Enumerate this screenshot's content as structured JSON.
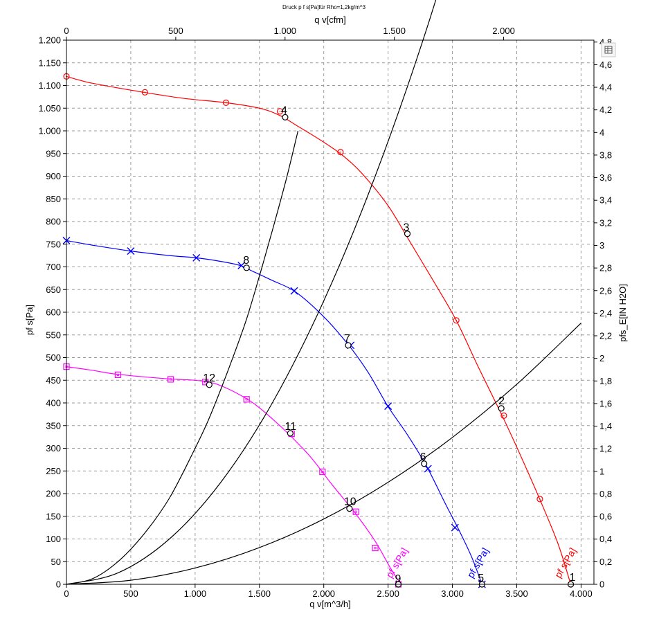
{
  "chart_data": {
    "type": "line",
    "title": "Druck p f s[Pa]für Rho=1,2kg/m^3",
    "xlabel": "q v[m^3/h]",
    "x2label": "q v[cfm]",
    "ylabel": "pf s[Pa]",
    "y2label": "pfs_E[IN H2O]",
    "xlim": [
      0,
      4100
    ],
    "x2lim": [
      0,
      2413.1
    ],
    "ylim": [
      0,
      1200
    ],
    "y2lim": [
      0,
      4.817
    ],
    "grid": true,
    "x_ticks": [
      {
        "v": 0,
        "label": "0"
      },
      {
        "v": 500,
        "label": "500"
      },
      {
        "v": 1000,
        "label": "1.000"
      },
      {
        "v": 1500,
        "label": "1.500"
      },
      {
        "v": 2000,
        "label": "2.000"
      },
      {
        "v": 2500,
        "label": "2.500"
      },
      {
        "v": 3000,
        "label": "3.000"
      },
      {
        "v": 3500,
        "label": "3.500"
      },
      {
        "v": 4000,
        "label": "4.000"
      }
    ],
    "x2_ticks": [
      {
        "v": 0,
        "label": "0"
      },
      {
        "v": 500,
        "label": "500"
      },
      {
        "v": 1000,
        "label": "1.000"
      },
      {
        "v": 1500,
        "label": "1.500"
      },
      {
        "v": 2000,
        "label": "2.000"
      }
    ],
    "y_ticks": [
      {
        "v": 0,
        "label": "0"
      },
      {
        "v": 50,
        "label": "50"
      },
      {
        "v": 100,
        "label": "100"
      },
      {
        "v": 150,
        "label": "150"
      },
      {
        "v": 200,
        "label": "200"
      },
      {
        "v": 250,
        "label": "250"
      },
      {
        "v": 300,
        "label": "300"
      },
      {
        "v": 350,
        "label": "350"
      },
      {
        "v": 400,
        "label": "400"
      },
      {
        "v": 450,
        "label": "450"
      },
      {
        "v": 500,
        "label": "500"
      },
      {
        "v": 550,
        "label": "550"
      },
      {
        "v": 600,
        "label": "600"
      },
      {
        "v": 650,
        "label": "650"
      },
      {
        "v": 700,
        "label": "700"
      },
      {
        "v": 750,
        "label": "750"
      },
      {
        "v": 800,
        "label": "800"
      },
      {
        "v": 850,
        "label": "850"
      },
      {
        "v": 900,
        "label": "900"
      },
      {
        "v": 950,
        "label": "950"
      },
      {
        "v": 1000,
        "label": "1.000"
      },
      {
        "v": 1050,
        "label": "1.050"
      },
      {
        "v": 1100,
        "label": "1.100"
      },
      {
        "v": 1150,
        "label": "1.150"
      },
      {
        "v": 1200,
        "label": "1.200"
      }
    ],
    "y2_ticks": [
      {
        "v": 0,
        "label": "0"
      },
      {
        "v": 0.2,
        "label": "0,2"
      },
      {
        "v": 0.4,
        "label": "0,4"
      },
      {
        "v": 0.6,
        "label": "0,6"
      },
      {
        "v": 0.8,
        "label": "0,8"
      },
      {
        "v": 1,
        "label": "1"
      },
      {
        "v": 1.2,
        "label": "1,2"
      },
      {
        "v": 1.4,
        "label": "1,4"
      },
      {
        "v": 1.6,
        "label": "1,6"
      },
      {
        "v": 1.8,
        "label": "1,8"
      },
      {
        "v": 2,
        "label": "2"
      },
      {
        "v": 2.2,
        "label": "2,2"
      },
      {
        "v": 2.4,
        "label": "2,4"
      },
      {
        "v": 2.6,
        "label": "2,6"
      },
      {
        "v": 2.8,
        "label": "2,8"
      },
      {
        "v": 3,
        "label": "3"
      },
      {
        "v": 3.2,
        "label": "3,2"
      },
      {
        "v": 3.4,
        "label": "3,4"
      },
      {
        "v": 3.6,
        "label": "3,6"
      },
      {
        "v": 3.8,
        "label": "3,8"
      },
      {
        "v": 4,
        "label": "4"
      },
      {
        "v": 4.2,
        "label": "4,2"
      },
      {
        "v": 4.4,
        "label": "4,4"
      },
      {
        "v": 4.6,
        "label": "4,6"
      },
      {
        "v": 4.8,
        "label": "4,8"
      }
    ],
    "series": [
      {
        "name": "pf s[Pa]",
        "color": "#ff0000",
        "marker": "circle",
        "x": [
          0,
          200,
          600,
          900,
          1240,
          1500,
          1650,
          1800,
          2000,
          2150,
          2300,
          2500,
          2660,
          2850,
          3030,
          3200,
          3390,
          3520,
          3680,
          3820,
          3920
        ],
        "y": [
          1120,
          1105,
          1085,
          1072,
          1062,
          1050,
          1035,
          1010,
          975,
          945,
          905,
          835,
          760,
          670,
          582,
          480,
          370,
          290,
          187,
          90,
          0
        ],
        "markers_x": [
          0,
          610,
          1240,
          1660,
          2130,
          3030,
          3400,
          3680,
          3920
        ],
        "markers_y": [
          1120,
          1085,
          1062,
          1043,
          953,
          582,
          372,
          188,
          0
        ],
        "label": "pf s[Pa]"
      },
      {
        "name": "pf s[Pa]",
        "color": "#0000ff",
        "marker": "x",
        "x": [
          0,
          200,
          500,
          800,
          1010,
          1200,
          1350,
          1450,
          1600,
          1780,
          2000,
          2200,
          2350,
          2500,
          2650,
          2800,
          2950,
          3050,
          3150,
          3230
        ],
        "y": [
          758,
          748,
          735,
          725,
          720,
          712,
          703,
          690,
          670,
          645,
          590,
          525,
          465,
          392,
          330,
          260,
          175,
          120,
          60,
          0
        ],
        "markers_x": [
          0,
          500,
          1010,
          1360,
          1770,
          2210,
          2500,
          2810,
          3020,
          3230
        ],
        "markers_y": [
          758,
          735,
          720,
          703,
          647,
          527,
          393,
          255,
          125,
          0
        ],
        "label": "pf s[Pa]"
      },
      {
        "name": "pf s[Pa]",
        "color": "#ff00ff",
        "marker": "square",
        "x": [
          0,
          200,
          400,
          800,
          1000,
          1150,
          1300,
          1450,
          1600,
          1750,
          1900,
          2050,
          2150,
          2250,
          2400,
          2520,
          2600
        ],
        "y": [
          480,
          472,
          463,
          453,
          450,
          443,
          425,
          400,
          365,
          325,
          280,
          225,
          190,
          155,
          95,
          35,
          0
        ],
        "markers_x": [
          0,
          400,
          810,
          1080,
          1400,
          1750,
          1990,
          2250,
          2400,
          2580
        ],
        "markers_y": [
          480,
          462,
          452,
          446,
          408,
          332,
          248,
          160,
          80,
          0
        ],
        "label": "pf s[Pa]"
      },
      {
        "name": "",
        "color": "#000000",
        "marker": "none",
        "x": [
          0,
          200,
          400,
          600,
          800,
          1000,
          1100,
          1200,
          1300,
          1400,
          1500,
          1600,
          1710,
          1800
        ],
        "y": [
          0,
          12,
          50,
          110,
          190,
          300,
          360,
          430,
          505,
          585,
          680,
          780,
          895,
          1000
        ],
        "label": ""
      },
      {
        "name": "",
        "color": "#000000",
        "marker": "none",
        "x": [
          0,
          400,
          800,
          1200,
          1600,
          2000,
          2400,
          2800,
          3200
        ],
        "y": [
          0,
          25,
          100,
          225,
          400,
          625,
          900,
          1225,
          1600
        ],
        "label": ""
      },
      {
        "name": "",
        "color": "#000000",
        "marker": "none",
        "x": [
          0,
          500,
          1000,
          1500,
          2000,
          2500,
          3000,
          3500,
          4000
        ],
        "y": [
          0,
          9,
          36,
          81,
          144,
          225,
          324,
          441,
          576
        ],
        "label": ""
      }
    ],
    "operating_points": [
      {
        "label": "1",
        "x": 3920,
        "y": 0
      },
      {
        "label": "2",
        "x": 3380,
        "y": 388
      },
      {
        "label": "3",
        "x": 2650,
        "y": 773
      },
      {
        "label": "4",
        "x": 1700,
        "y": 1030
      },
      {
        "label": "5",
        "x": 3230,
        "y": 0
      },
      {
        "label": "6",
        "x": 2780,
        "y": 266
      },
      {
        "label": "7",
        "x": 2190,
        "y": 527
      },
      {
        "label": "8",
        "x": 1400,
        "y": 698
      },
      {
        "label": "9",
        "x": 2580,
        "y": 0
      },
      {
        "label": "10",
        "x": 2200,
        "y": 167
      },
      {
        "label": "11",
        "x": 1740,
        "y": 333
      },
      {
        "label": "12",
        "x": 1110,
        "y": 440
      }
    ]
  },
  "toolbar": {
    "icon": "table-icon"
  }
}
